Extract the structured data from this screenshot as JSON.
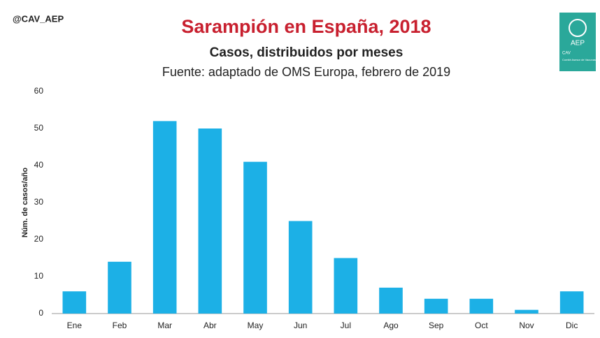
{
  "handle": "@CAV_AEP",
  "logo": {
    "name": "AEP",
    "org": "CAV",
    "org_full": "Comité Asesor de Vacunas"
  },
  "chart_data": {
    "type": "bar",
    "title": "Sarampión en España, 2018",
    "subtitle": "Casos, distribuidos por meses",
    "source": "Fuente: adaptado de OMS Europa, febrero de 2019",
    "y_label": "Núm. de casos/año",
    "categories": [
      "Ene",
      "Feb",
      "Mar",
      "Abr",
      "May",
      "Jun",
      "Jul",
      "Ago",
      "Sep",
      "Oct",
      "Nov",
      "Dic"
    ],
    "values": [
      6,
      14,
      52,
      50,
      41,
      25,
      15,
      7,
      4,
      4,
      1,
      6
    ],
    "color": "#1cb0e6",
    "ylim": [
      0,
      60
    ],
    "yticks": [
      0,
      10,
      20,
      30,
      40,
      50,
      60
    ],
    "grid": false
  }
}
